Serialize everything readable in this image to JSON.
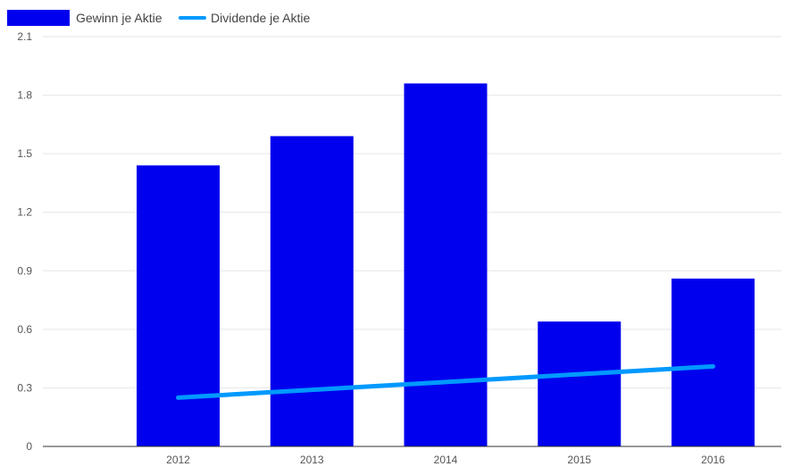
{
  "chart_data": {
    "type": "bar",
    "title": "",
    "xlabel": "",
    "ylabel": "",
    "categories": [
      "2012",
      "2013",
      "2014",
      "2015",
      "2016"
    ],
    "ylim": [
      0,
      2.1
    ],
    "yticks": [
      "0",
      "0.3",
      "0.6",
      "0.9",
      "1.2",
      "1.5",
      "1.8",
      "2.1"
    ],
    "yticks_values": [
      0,
      0.3,
      0.6,
      0.9,
      1.2,
      1.5,
      1.8,
      2.1
    ],
    "grid": true,
    "legend_position": "top-left",
    "series": [
      {
        "name": "Gewinn je Aktie",
        "type": "bar",
        "color": "#0000ee",
        "values": [
          1.44,
          1.59,
          1.86,
          0.64,
          0.86
        ]
      },
      {
        "name": "Dividende je Aktie",
        "type": "line",
        "color": "#0099ff",
        "values": [
          0.25,
          0.29,
          0.33,
          0.37,
          0.41
        ]
      }
    ]
  }
}
